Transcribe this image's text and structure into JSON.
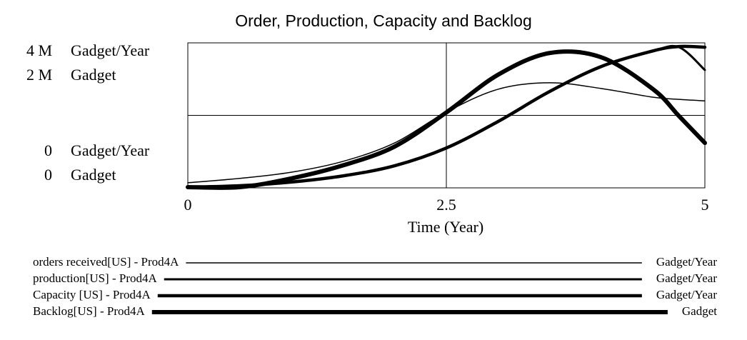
{
  "chart_data": {
    "type": "line",
    "title": "Order, Production, Capacity and Backlog",
    "x_label": "Time (Year)",
    "xlim": [
      0,
      5
    ],
    "xticks": [
      0,
      2.5,
      5
    ],
    "ylim": [
      0,
      4000000
    ],
    "yticks": [
      0,
      {
        "value": 4000000,
        "label": "4 M"
      }
    ],
    "y_unit": "Gadget/Year",
    "y2lim": [
      0,
      2000000
    ],
    "y2ticks": [
      0,
      {
        "value": 2000000,
        "label": "2 M"
      }
    ],
    "y2_unit": "Gadget",
    "grid": true,
    "x": [
      0,
      0.5,
      1,
      1.5,
      2,
      2.5,
      3,
      3.5,
      4,
      4.5,
      4.75,
      5
    ],
    "series": [
      {
        "name": "orders received[US] - Prod4A",
        "unit": "Gadget/Year",
        "color": "#000000",
        "width": 1.5,
        "values": [
          140000,
          260000,
          430000,
          730000,
          1240000,
          2090000,
          2720000,
          2900000,
          2740000,
          2500000,
          2440000,
          2400000
        ]
      },
      {
        "name": "production[US] - Prod4A",
        "unit": "Gadget/Year",
        "color": "#000000",
        "width": 3,
        "values": [
          20000,
          60000,
          160000,
          330000,
          610000,
          1100000,
          1830000,
          2660000,
          3350000,
          3780000,
          3880000,
          3250000
        ]
      },
      {
        "name": "Capacity [US] - Prod4A",
        "unit": "Gadget/Year",
        "color": "#000000",
        "width": 4.5,
        "values": [
          20000,
          60000,
          160000,
          330000,
          610000,
          1100000,
          1830000,
          2660000,
          3350000,
          3780000,
          3900000,
          3880000
        ]
      },
      {
        "name": "Backlog[US] - Prod4A",
        "unit": "Gadget",
        "axis": "y2",
        "color": "#000000",
        "width": 6,
        "values": [
          10000,
          10000,
          130000,
          310000,
          570000,
          1040000,
          1560000,
          1860000,
          1800000,
          1360000,
          990000,
          620000
        ]
      }
    ]
  }
}
